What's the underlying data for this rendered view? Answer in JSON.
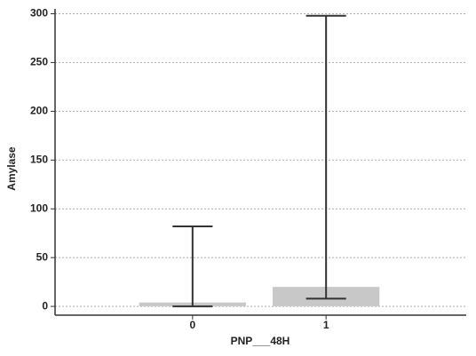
{
  "chart_data": {
    "type": "bar",
    "x_label": "PNP___48H",
    "y_label": "Amylase",
    "x": [
      0,
      1
    ],
    "values": [
      4,
      20
    ],
    "low": [
      0,
      8
    ],
    "high": [
      82,
      298
    ],
    "color": "#c8c8c8",
    "error_color": "#333333",
    "xlim": [
      -1.03,
      2.05
    ],
    "xticks": [
      0,
      1
    ],
    "ylim": [
      -9,
      305
    ],
    "yticks": [
      0,
      50,
      100,
      150,
      200,
      250,
      300
    ],
    "grid": true
  }
}
